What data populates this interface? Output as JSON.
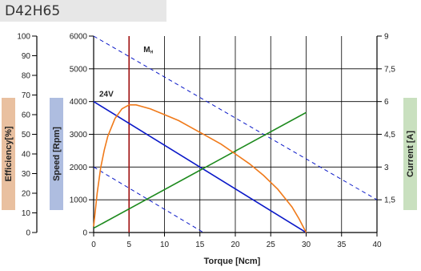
{
  "title": "D42H65",
  "colors": {
    "efficiency_box": "#e9c0a0",
    "speed_box": "#aebde0",
    "current_box": "#c9e0bf",
    "speed_line": "#0a18c8",
    "efficiency_line": "#f07a1a",
    "current_line": "#1d8a1d",
    "mh_line": "#a01010",
    "grid": "#000000"
  },
  "chart_data": {
    "type": "line",
    "title": "D42H65",
    "xlabel": "Torque [Ncm]",
    "xlim": [
      0,
      40
    ],
    "x_ticks": [
      0,
      5,
      10,
      15,
      20,
      25,
      30,
      35,
      40
    ],
    "y_axes": {
      "efficiency": {
        "label": "Efficiency[%]",
        "lim": [
          0,
          100
        ],
        "ticks": [
          0,
          10,
          20,
          30,
          40,
          50,
          60,
          70,
          80,
          90,
          100
        ]
      },
      "speed": {
        "label": "Speed [Rpm]",
        "lim": [
          0,
          6000
        ],
        "ticks": [
          0,
          1000,
          2000,
          3000,
          4000,
          5000,
          6000
        ]
      },
      "current": {
        "label": "Current [A]",
        "lim": [
          0,
          9
        ],
        "ticks": [
          "1,5",
          "3",
          "4,5",
          "6",
          "7,5",
          "9"
        ]
      }
    },
    "annotations": {
      "mh_label": "M",
      "mh_sub": "H",
      "mh_torque": 5,
      "voltage_label": "24V"
    },
    "series": [
      {
        "axis": "speed",
        "x": [
          0,
          30
        ],
        "y": [
          4000,
          0
        ]
      },
      {
        "axis": "speed",
        "style": "dashed",
        "x": [
          0,
          40
        ],
        "y": [
          6000,
          1000
        ]
      },
      {
        "axis": "speed",
        "style": "dashed",
        "x": [
          0,
          15.5
        ],
        "y": [
          2000,
          0
        ]
      },
      {
        "axis": "current",
        "x": [
          0,
          30
        ],
        "y": [
          0.2,
          5.5
        ]
      },
      {
        "axis": "efficiency",
        "x": [
          0,
          0.5,
          1,
          1.5,
          2,
          3,
          4,
          5,
          6,
          8,
          10,
          12,
          14,
          16,
          18,
          20,
          22,
          24,
          26,
          28,
          29,
          30
        ],
        "y": [
          3,
          20,
          33,
          42,
          49,
          58,
          63,
          65,
          65,
          63,
          60,
          57,
          53,
          49,
          45,
          40,
          35,
          29,
          22,
          13,
          7,
          0
        ]
      }
    ]
  }
}
